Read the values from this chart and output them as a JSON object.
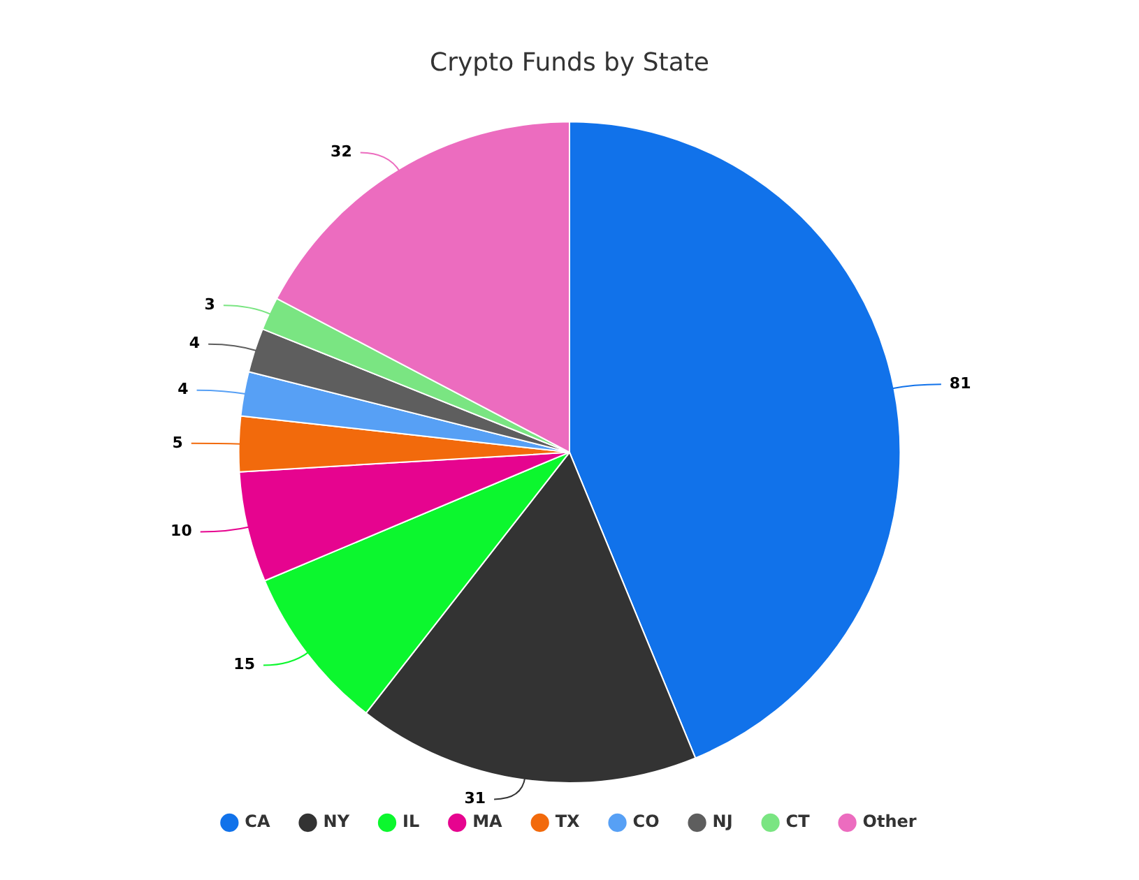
{
  "chart_data": {
    "type": "pie",
    "title": "Crypto Funds by State",
    "categories": [
      "CA",
      "NY",
      "IL",
      "MA",
      "TX",
      "CO",
      "NJ",
      "CT",
      "Other"
    ],
    "values": [
      81,
      31,
      15,
      10,
      5,
      4,
      4,
      3,
      32
    ],
    "colors": [
      "#1172ea",
      "#333333",
      "#0cf72e",
      "#e6048f",
      "#f26a0c",
      "#57a0f5",
      "#5e5e5e",
      "#7ae582",
      "#ec6cbf"
    ],
    "data_labels": true,
    "legend": "bottom"
  }
}
